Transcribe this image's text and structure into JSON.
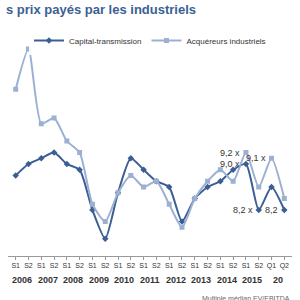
{
  "chart_data": {
    "type": "line",
    "title": "s prix payés par les industriels",
    "footnote": "Multiple médian EV/EBITDA",
    "categories": [
      "S1",
      "S2",
      "S1",
      "S2",
      "S1",
      "S2",
      "S1",
      "S2",
      "S1",
      "S2",
      "S1",
      "S2",
      "S1",
      "S2",
      "S1",
      "S2",
      "S1",
      "S2",
      "S1",
      "S2",
      "Q1",
      "Q2"
    ],
    "category_groups": [
      {
        "label": "2006",
        "count": 2
      },
      {
        "label": "2007",
        "count": 2
      },
      {
        "label": "2008",
        "count": 2
      },
      {
        "label": "2009",
        "count": 2
      },
      {
        "label": "2010",
        "count": 2
      },
      {
        "label": "2011",
        "count": 2
      },
      {
        "label": "2012",
        "count": 2
      },
      {
        "label": "2013",
        "count": 2
      },
      {
        "label": "2014",
        "count": 2
      },
      {
        "label": "2015",
        "count": 2
      },
      {
        "label": "20",
        "count": 2
      }
    ],
    "series": [
      {
        "name": "Capital-transmission",
        "color": "#3b5f94",
        "marker": "diamond",
        "values": [
          8.8,
          9.0,
          9.1,
          9.2,
          9.0,
          8.9,
          8.2,
          7.7,
          8.5,
          9.1,
          8.9,
          8.7,
          8.6,
          8.0,
          8.4,
          8.6,
          8.7,
          8.9,
          9.0,
          8.2,
          8.6,
          8.2
        ]
      },
      {
        "name": "Acquéreurs industriels",
        "color": "#9cb0d2",
        "marker": "square",
        "values": [
          10.3,
          11.0,
          9.7,
          9.8,
          9.4,
          9.2,
          8.3,
          8.0,
          8.5,
          8.8,
          8.6,
          8.7,
          8.3,
          7.9,
          8.4,
          8.7,
          8.9,
          8.7,
          9.2,
          8.6,
          9.1,
          8.4
        ]
      }
    ],
    "annotations": [
      {
        "text": "9,2 x",
        "series": "Acquéreurs industriels",
        "index": 18
      },
      {
        "text": "9,0 x",
        "series": "Capital-transmission",
        "index": 18
      },
      {
        "text": "8,2 x",
        "series": "Capital-transmission",
        "index": 19
      },
      {
        "text": "9,1 x",
        "series": "Acquéreurs industriels",
        "index": 20
      },
      {
        "text": "8,2",
        "series": "Capital-transmission",
        "index": 21
      }
    ],
    "ylim": [
      7.4,
      11.4
    ],
    "yticks": [],
    "tick_labels": "x",
    "grid": false,
    "legend": "top"
  }
}
